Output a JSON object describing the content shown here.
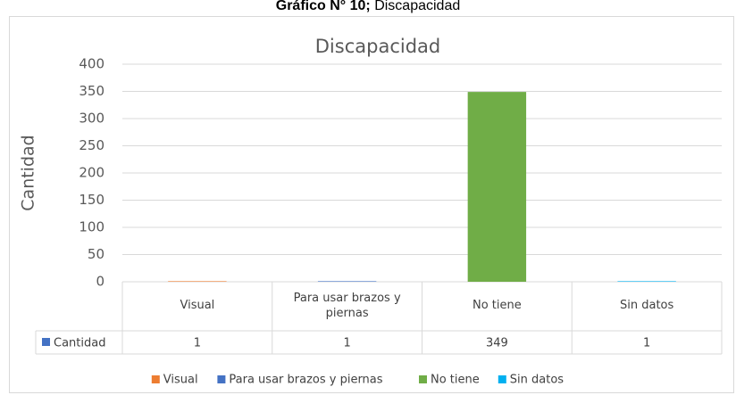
{
  "chart_data": {
    "type": "bar",
    "caption_bold": "Gráfico N° 10;",
    "caption": "Discapacidad",
    "title": "Discapacidad",
    "y_label": "Cantidad",
    "categories": [
      "Visual",
      "Para usar brazos y piernas",
      "No tiene",
      "Sin datos"
    ],
    "series": [
      {
        "name": "Cantidad",
        "color": "#4472c4",
        "values": [
          1,
          1,
          349,
          1
        ]
      }
    ],
    "point_colors": [
      "#ed7d31",
      "#4472c4",
      "#70ad47",
      "#00b0f0"
    ],
    "ylim": [
      0,
      400
    ],
    "yticks": [
      0,
      50,
      100,
      150,
      200,
      250,
      300,
      350,
      400
    ],
    "grid": true
  }
}
